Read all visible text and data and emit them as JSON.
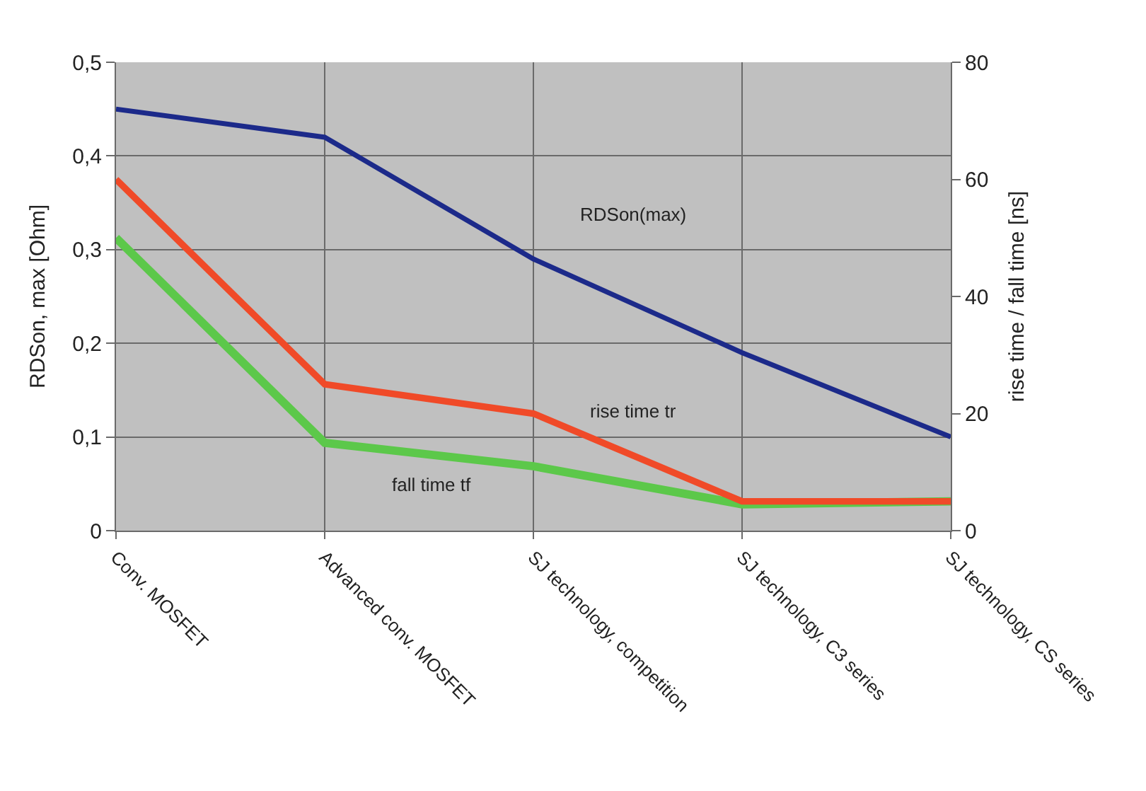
{
  "chart_data": {
    "type": "line",
    "categories": [
      "Conv. MOSFET",
      "Advanced conv. MOSFET",
      "SJ technology, competition",
      "SJ technology, C3 series",
      "SJ technology, CS series"
    ],
    "series": [
      {
        "name": "RDSon(max)",
        "color": "#1c2a8a",
        "values": [
          0.45,
          0.42,
          0.29,
          0.19,
          0.1
        ]
      },
      {
        "name": "rise time tr",
        "color": "#f04a28",
        "axis": "y2",
        "values": [
          60,
          25,
          20,
          5,
          5
        ]
      },
      {
        "name": "fall time tf",
        "color": "#5cc84a",
        "axis": "y2",
        "values": [
          50,
          15,
          11,
          4.5,
          5
        ]
      }
    ],
    "ylabel": "RDSon, max [Ohm]",
    "y2label": "rise time / fall time [ns]",
    "ylim": [
      0,
      0.5
    ],
    "yticks": [
      {
        "value": 0,
        "label": "0"
      },
      {
        "value": 0.1,
        "label": "0,1"
      },
      {
        "value": 0.2,
        "label": "0,2"
      },
      {
        "value": 0.3,
        "label": "0,3"
      },
      {
        "value": 0.4,
        "label": "0,4"
      },
      {
        "value": 0.5,
        "label": "0,5"
      }
    ],
    "y2lim": [
      0,
      80
    ],
    "y2ticks": [
      0,
      20,
      40,
      60,
      80
    ],
    "grid": true,
    "legend": false,
    "marker": "none",
    "line_style": "solid"
  }
}
